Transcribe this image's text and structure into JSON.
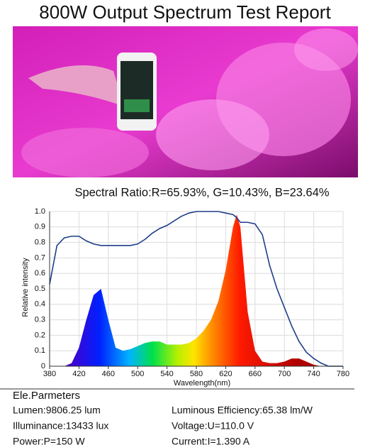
{
  "header": {
    "title": "800W Output Spectrum Test Report"
  },
  "chart_data": {
    "type": "line",
    "title": "Spectral Ratio:R=65.93%, G=10.43%, B=23.64%",
    "x_label": "Wavelength(nm)",
    "y_label": "Relative intensity",
    "x": [
      380,
      390,
      400,
      410,
      420,
      430,
      440,
      450,
      460,
      470,
      480,
      490,
      500,
      510,
      520,
      530,
      540,
      550,
      560,
      570,
      580,
      590,
      600,
      610,
      620,
      630,
      635,
      640,
      650,
      660,
      670,
      680,
      690,
      700,
      710,
      720,
      730,
      740,
      750,
      760,
      770,
      780
    ],
    "series": [
      {
        "type": "line",
        "color": "#1f3d8a",
        "values": [
          0.53,
          0.78,
          0.83,
          0.84,
          0.84,
          0.81,
          0.79,
          0.78,
          0.78,
          0.78,
          0.78,
          0.78,
          0.79,
          0.82,
          0.86,
          0.89,
          0.91,
          0.94,
          0.97,
          0.99,
          1.0,
          1.0,
          1.0,
          1.0,
          0.99,
          0.98,
          0.96,
          0.93,
          0.93,
          0.92,
          0.85,
          0.65,
          0.5,
          0.38,
          0.26,
          0.16,
          0.09,
          0.05,
          0.02,
          0,
          0,
          0
        ]
      },
      {
        "type": "area",
        "values": [
          0,
          0,
          0,
          0.02,
          0.12,
          0.3,
          0.46,
          0.5,
          0.3,
          0.12,
          0.1,
          0.11,
          0.13,
          0.15,
          0.16,
          0.16,
          0.14,
          0.14,
          0.14,
          0.15,
          0.18,
          0.23,
          0.3,
          0.42,
          0.62,
          0.9,
          0.98,
          0.9,
          0.35,
          0.1,
          0.03,
          0.02,
          0.02,
          0.03,
          0.05,
          0.05,
          0.03,
          0.01,
          0,
          0,
          0,
          0
        ]
      }
    ],
    "xlim": [
      380,
      780
    ],
    "xticks": [
      380,
      420,
      460,
      500,
      540,
      580,
      620,
      660,
      700,
      740,
      780
    ],
    "ylim": [
      0,
      1
    ],
    "yticks": [
      0,
      0.1,
      0.2,
      0.3,
      0.4,
      0.5,
      0.6,
      0.7,
      0.8,
      0.9,
      {
        "value": 1,
        "label": "1.0"
      }
    ],
    "grid": true
  },
  "specs": {
    "heading": "Ele.Parmeters",
    "left": [
      "Lumen:9806.25 lum",
      "Illuminance:13433 lux",
      "Power:P=150 W"
    ],
    "right": [
      "Luminous Efficiency:65.38 lm/W",
      "Voltage:U=110.0 V",
      "Current:I=1.390 A"
    ]
  }
}
